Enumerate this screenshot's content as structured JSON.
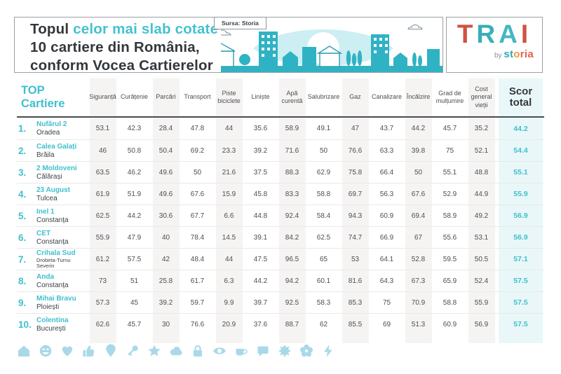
{
  "header": {
    "title": {
      "part1": "Topul",
      "part2": "celor mai slab cotate",
      "line2": "10 cartiere din România,",
      "line3": "conform Vocea Cartierelor"
    },
    "source_label": "Sursa: Storia",
    "logo": {
      "letters": [
        "T",
        "R",
        "A",
        "I"
      ],
      "by": "by",
      "brand_parts": [
        {
          "text": "st",
          "color": "#2fa9b8"
        },
        {
          "text": "o",
          "color": "#f49b33"
        },
        {
          "text": "ria",
          "color": "#e3614d"
        }
      ]
    }
  },
  "chart_data": {
    "type": "table",
    "title": "Topul celor mai slab cotate 10 cartiere din România, conform Vocea Cartierelor",
    "source": "Sursa: Storia",
    "row_header": [
      "TOP",
      "Cartiere"
    ],
    "score_columns": [
      "Siguranță",
      "Curățenie",
      "Parcări",
      "Transport",
      "Piste biciclete",
      "Liniște",
      "Apă curentă",
      "Salubrizare",
      "Gaz",
      "Canalizare",
      "Încălzire",
      "Grad de mulțumire",
      "Cost general vieții"
    ],
    "total_column": "Scor total",
    "rows": [
      {
        "rank": "1.",
        "name": "Nufărul 2",
        "city": "Oradea",
        "scores": [
          53.1,
          42.3,
          28.4,
          47.8,
          44,
          35.6,
          58.9,
          49.1,
          47,
          43.7,
          44.2,
          45.7,
          35.2
        ],
        "total": 44.2
      },
      {
        "rank": "2.",
        "name": "Calea Galați",
        "city": "Brăila",
        "scores": [
          46,
          50.8,
          50.4,
          69.2,
          23.3,
          39.2,
          71.6,
          50,
          76.6,
          63.3,
          39.8,
          75,
          52.1
        ],
        "total": 54.4
      },
      {
        "rank": "3.",
        "name": "2 Moldoveni",
        "city": "Călărași",
        "scores": [
          63.5,
          46.2,
          49.6,
          50,
          21.6,
          37.5,
          88.3,
          62.9,
          75.8,
          66.4,
          50,
          55.1,
          48.8
        ],
        "total": 55.1
      },
      {
        "rank": "4.",
        "name": "23 August",
        "city": "Tulcea",
        "scores": [
          61.9,
          51.9,
          49.6,
          67.6,
          15.9,
          45.8,
          83.3,
          58.8,
          69.7,
          56.3,
          67.6,
          52.9,
          44.9
        ],
        "total": 55.9
      },
      {
        "rank": "5.",
        "name": "Inel 1",
        "city": "Constanța",
        "scores": [
          62.5,
          44.2,
          30.6,
          67.7,
          6.6,
          44.8,
          92.4,
          58.4,
          94.3,
          60.9,
          69.4,
          58.9,
          49.2
        ],
        "total": 56.9
      },
      {
        "rank": "6.",
        "name": "CET",
        "city": "Constanța",
        "scores": [
          55.9,
          47.9,
          40,
          78.4,
          14.5,
          39.1,
          84.2,
          62.5,
          74.7,
          66.9,
          67,
          55.6,
          53.1
        ],
        "total": 56.9
      },
      {
        "rank": "7.",
        "name": "Crihala Sud",
        "city": "Drobeta-Turnu Severin",
        "scores": [
          61.2,
          57.5,
          42,
          48.4,
          44,
          47.5,
          96.5,
          65,
          53,
          64.1,
          52.8,
          59.5,
          50.5
        ],
        "total": 57.1
      },
      {
        "rank": "8.",
        "name": "Anda",
        "city": "Constanța",
        "scores": [
          73,
          51,
          25.8,
          61.7,
          6.3,
          44.2,
          94.2,
          60.1,
          81.6,
          64.3,
          67.3,
          65.9,
          52.4
        ],
        "total": 57.5
      },
      {
        "rank": "9.",
        "name": "Mihai Bravu",
        "city": "Ploiești",
        "scores": [
          57.3,
          45,
          39.2,
          59.7,
          9.9,
          39.7,
          92.5,
          58.3,
          85.3,
          75,
          70.9,
          58.8,
          55.9
        ],
        "total": 57.5
      },
      {
        "rank": "10.",
        "name": "Colentina",
        "city": "București",
        "scores": [
          62.6,
          45.7,
          30,
          76.6,
          20.9,
          37.6,
          88.7,
          62,
          85.5,
          69,
          51.3,
          60.9,
          56.9
        ],
        "total": 57.5
      }
    ]
  },
  "icons": {
    "names": [
      "home",
      "smiley",
      "heart",
      "thumbs-up",
      "location-pin",
      "key",
      "star",
      "cloud",
      "lock",
      "eye",
      "cup",
      "chat-bubble",
      "sun",
      "flower",
      "lightning"
    ]
  },
  "colors": {
    "accent_teal": "#3fc0ce",
    "title_teal": "#45c1cf",
    "title_dark": "#33373b",
    "column_stripe": "#f5f4f3",
    "total_column_bg": "#e9f7f8",
    "icon_blue": "#a9d9e8",
    "logo_red": "#cf5244",
    "logo_teal": "#38aebc",
    "brand_teal": "#2fa9b8",
    "brand_orange": "#f49b33",
    "brand_red": "#e3614d"
  }
}
